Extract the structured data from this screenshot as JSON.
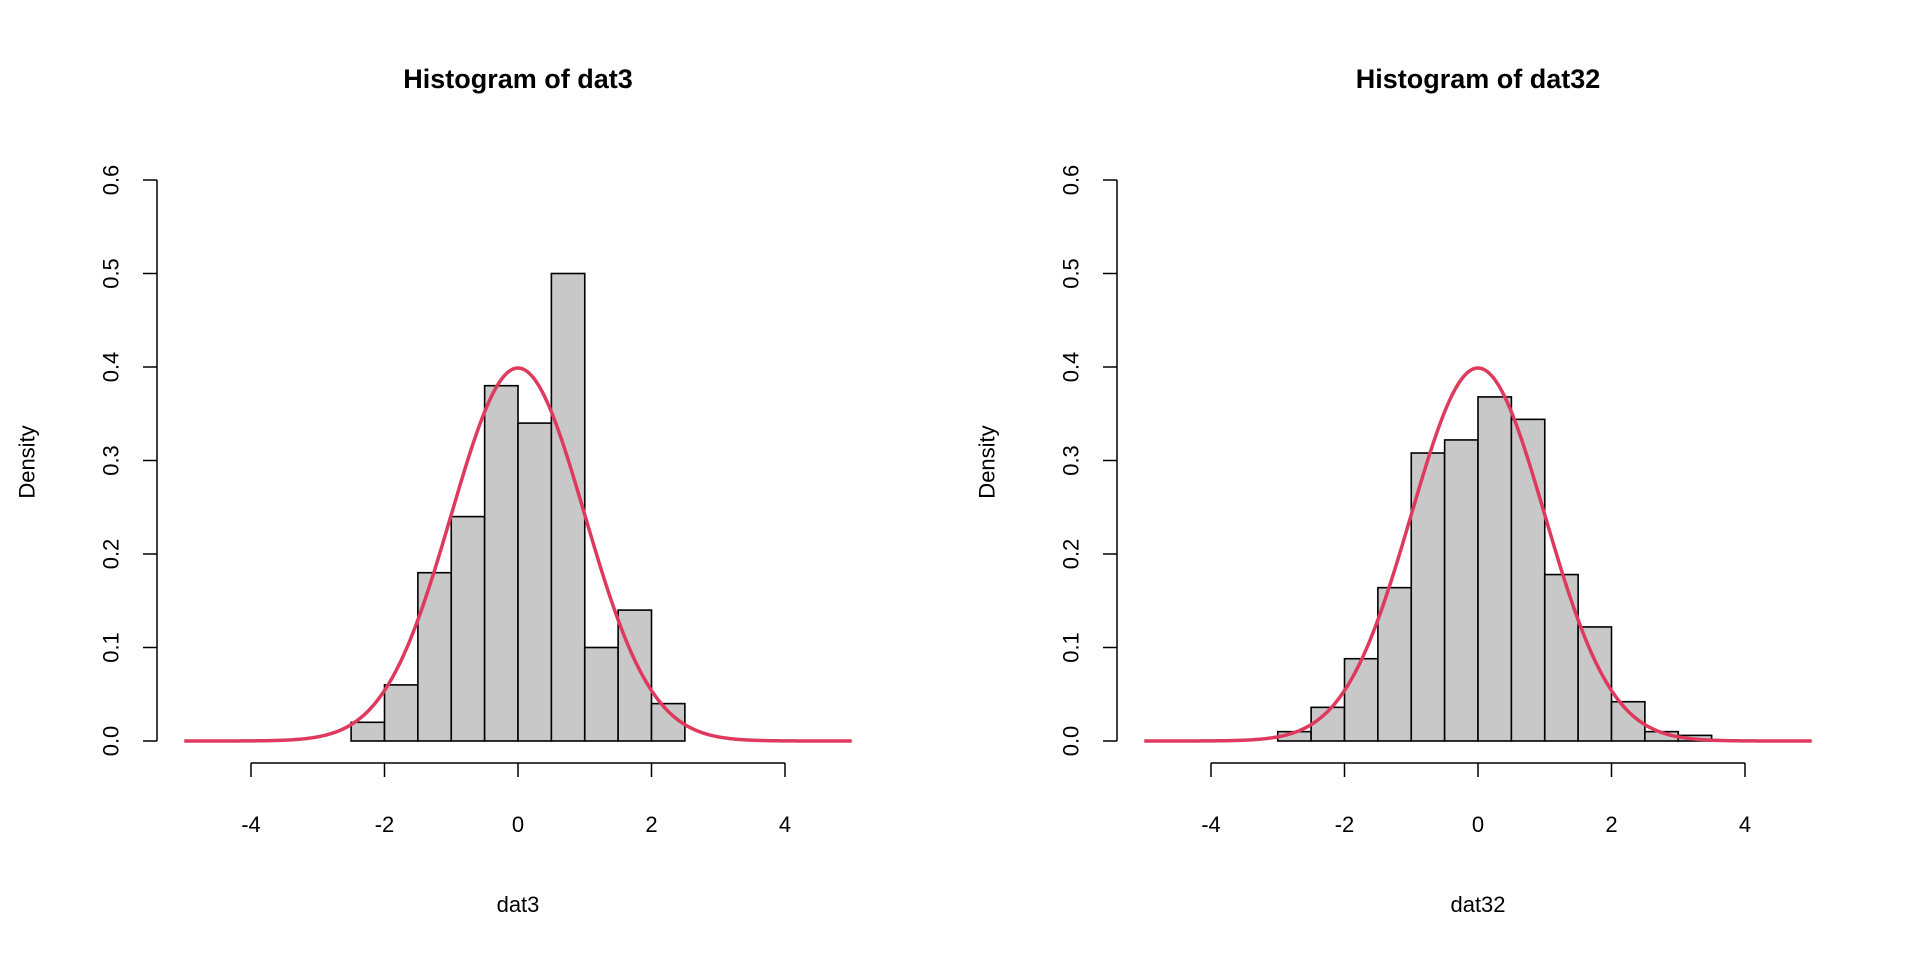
{
  "chart_data": [
    {
      "type": "bar",
      "title": "Histogram of dat3",
      "xlabel": "dat3",
      "ylabel": "Density",
      "xlim": [
        -5,
        5
      ],
      "ylim": [
        0,
        0.6
      ],
      "xticks": [
        -4,
        -2,
        0,
        2,
        4
      ],
      "xtick_labels": [
        "-4",
        "-2",
        "0",
        "2",
        "4"
      ],
      "yticks": [
        0,
        0.1,
        0.2,
        0.3,
        0.4,
        0.5,
        0.6
      ],
      "ytick_labels": [
        "0.0",
        "0.1",
        "0.2",
        "0.3",
        "0.4",
        "0.5",
        "0.6"
      ],
      "bin_start": -2.5,
      "bin_width": 0.5,
      "values": [
        0.02,
        0.06,
        0.18,
        0.24,
        0.38,
        0.34,
        0.5,
        0.1,
        0.14,
        0.04
      ],
      "overlay": {
        "type": "line",
        "name": "Normal density (mean 0, sd 1)",
        "x_range": [
          -5,
          5
        ],
        "color": "#DF3A5E"
      },
      "bar_color": "#C8C8C8",
      "grid": false
    },
    {
      "type": "bar",
      "title": "Histogram of dat32",
      "xlabel": "dat32",
      "ylabel": "Density",
      "xlim": [
        -5,
        5
      ],
      "ylim": [
        0,
        0.6
      ],
      "xticks": [
        -4,
        -2,
        0,
        2,
        4
      ],
      "xtick_labels": [
        "-4",
        "-2",
        "0",
        "2",
        "4"
      ],
      "yticks": [
        0,
        0.1,
        0.2,
        0.3,
        0.4,
        0.5,
        0.6
      ],
      "ytick_labels": [
        "0.0",
        "0.1",
        "0.2",
        "0.3",
        "0.4",
        "0.5",
        "0.6"
      ],
      "bin_start": -3.0,
      "bin_width": 0.5,
      "values": [
        0.01,
        0.036,
        0.088,
        0.164,
        0.308,
        0.322,
        0.368,
        0.344,
        0.178,
        0.122,
        0.042,
        0.01,
        0.006
      ],
      "overlay": {
        "type": "line",
        "name": "Normal density (mean 0, sd 1)",
        "x_range": [
          -5,
          5
        ],
        "color": "#DF3A5E"
      },
      "bar_color": "#C8C8C8",
      "grid": false
    }
  ]
}
